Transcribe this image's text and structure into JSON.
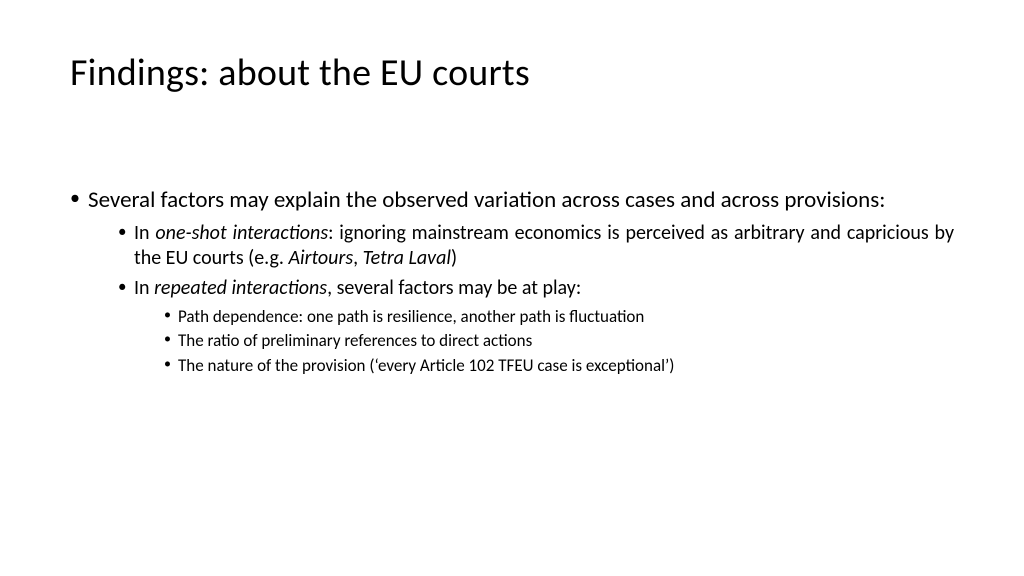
{
  "slide": {
    "background_color": "#ffffff",
    "text_color": "#000000",
    "title": "Findings: about the EU courts",
    "title_fontsize": 38,
    "body_fontsize_lvl1": 23,
    "body_fontsize_lvl2": 20,
    "body_fontsize_lvl3": 17,
    "font_family": "Calibri",
    "bullets": {
      "lvl1": {
        "text": "Several factors may explain the observed variation across cases and across provisions:"
      },
      "lvl2a": {
        "prefix": "In ",
        "italic": "one-shot interactions",
        "mid": ": ignoring mainstream economics is perceived as arbitrary and capricious by the EU courts (e.g. ",
        "italic2": "Airtours",
        "sep": ", ",
        "italic3": "Tetra Laval",
        "suffix": ")"
      },
      "lvl2b": {
        "prefix": "In ",
        "italic": "repeated interactions",
        "suffix": ", several factors may be at play:"
      },
      "lvl3a": "Path dependence: one path is resilience, another path is fluctuation",
      "lvl3b": "The ratio of preliminary references to direct actions",
      "lvl3c": "The nature of the provision (‘every Article 102 TFEU case is exceptional’)"
    }
  }
}
